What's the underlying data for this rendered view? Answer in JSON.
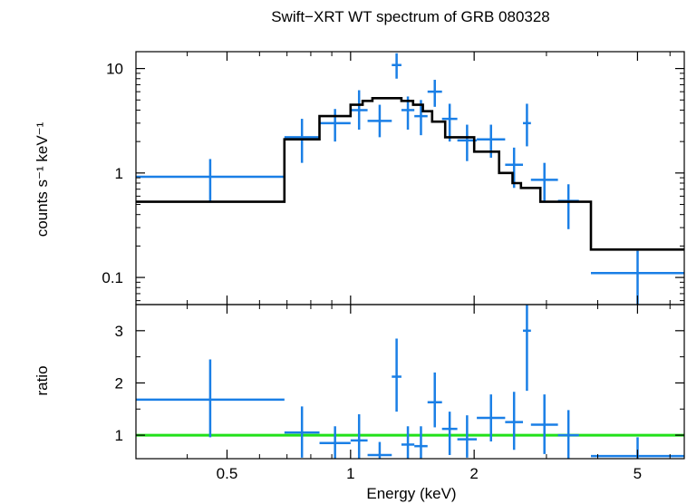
{
  "chart_data": {
    "type": "scatter",
    "title": "Swift−XRT WT spectrum of GRB 080328",
    "xlabel": "Energy (keV)",
    "x_scale": "log",
    "x_range": [
      0.3,
      6.5
    ],
    "x_tick_labels": [
      "0.5",
      "1",
      "2",
      "5"
    ],
    "colors": {
      "data": "#1a7fe6",
      "model": "#000000",
      "ratio_line": "#22e01a"
    },
    "panels": [
      {
        "id": "spectrum",
        "ylabel": "counts s⁻¹ keV⁻¹",
        "y_scale": "log",
        "y_range": [
          0.055,
          14.5
        ],
        "y_tick_labels": [
          "0.1",
          "1",
          "10"
        ],
        "series": [
          {
            "kind": "data_with_errors",
            "points": [
              {
                "x0": 0.3,
                "x1": 0.69,
                "y": 0.92,
                "ylo": 0.52,
                "yhi": 1.36
              },
              {
                "x0": 0.69,
                "x1": 0.84,
                "y": 2.2,
                "ylo": 1.25,
                "yhi": 3.3
              },
              {
                "x0": 0.84,
                "x1": 1.0,
                "y": 3.0,
                "ylo": 2.0,
                "yhi": 4.1
              },
              {
                "x0": 1.0,
                "x1": 1.1,
                "y": 4.0,
                "ylo": 2.6,
                "yhi": 6.2
              },
              {
                "x0": 1.1,
                "x1": 1.26,
                "y": 3.15,
                "ylo": 2.2,
                "yhi": 4.5
              },
              {
                "x0": 1.26,
                "x1": 1.33,
                "y": 10.8,
                "ylo": 8.0,
                "yhi": 14.0
              },
              {
                "x0": 1.33,
                "x1": 1.43,
                "y": 4.0,
                "ylo": 2.6,
                "yhi": 5.4
              },
              {
                "x0": 1.43,
                "x1": 1.54,
                "y": 3.5,
                "ylo": 2.3,
                "yhi": 5.0
              },
              {
                "x0": 1.54,
                "x1": 1.67,
                "y": 6.0,
                "ylo": 4.3,
                "yhi": 7.8
              },
              {
                "x0": 1.67,
                "x1": 1.82,
                "y": 3.3,
                "ylo": 2.0,
                "yhi": 4.6
              },
              {
                "x0": 1.82,
                "x1": 2.03,
                "y": 2.05,
                "ylo": 1.3,
                "yhi": 2.9
              },
              {
                "x0": 2.03,
                "x1": 2.38,
                "y": 2.1,
                "ylo": 1.4,
                "yhi": 2.9
              },
              {
                "x0": 2.38,
                "x1": 2.63,
                "y": 1.2,
                "ylo": 0.72,
                "yhi": 1.75
              },
              {
                "x0": 2.63,
                "x1": 2.75,
                "y": 3.0,
                "ylo": 1.8,
                "yhi": 4.6
              },
              {
                "x0": 2.75,
                "x1": 3.2,
                "y": 0.86,
                "ylo": 0.52,
                "yhi": 1.25
              },
              {
                "x0": 3.2,
                "x1": 3.6,
                "y": 0.54,
                "ylo": 0.29,
                "yhi": 0.78
              },
              {
                "x0": 3.85,
                "x1": 6.5,
                "y": 0.11,
                "ylo": 0.055,
                "yhi": 0.18
              }
            ]
          },
          {
            "kind": "model_step",
            "edges": [
              0.3,
              0.69,
              0.84,
              1.0,
              1.07,
              1.13,
              1.33,
              1.42,
              1.5,
              1.58,
              1.7,
              1.86,
              2.0,
              2.3,
              2.48,
              2.6,
              2.9,
              3.2,
              3.85,
              6.5
            ],
            "values": [
              0.53,
              2.1,
              3.5,
              4.5,
              4.9,
              5.2,
              4.9,
              4.5,
              3.9,
              3.1,
              2.2,
              2.2,
              1.6,
              1.0,
              0.8,
              0.72,
              0.53,
              0.53,
              0.185
            ]
          }
        ]
      },
      {
        "id": "ratio",
        "ylabel": "ratio",
        "y_scale": "linear",
        "y_range": [
          0.55,
          3.5
        ],
        "y_tick_labels": [
          "1",
          "2",
          "3"
        ],
        "reference_line": 1.0,
        "series": [
          {
            "kind": "data_with_errors",
            "points": [
              {
                "x0": 0.3,
                "x1": 0.69,
                "y": 1.68,
                "ylo": 0.96,
                "yhi": 2.45
              },
              {
                "x0": 0.69,
                "x1": 0.84,
                "y": 1.05,
                "ylo": 0.57,
                "yhi": 1.55
              },
              {
                "x0": 0.84,
                "x1": 1.0,
                "y": 0.85,
                "ylo": 0.55,
                "yhi": 1.17
              },
              {
                "x0": 1.0,
                "x1": 1.1,
                "y": 0.9,
                "ylo": 0.55,
                "yhi": 1.4
              },
              {
                "x0": 1.1,
                "x1": 1.26,
                "y": 0.62,
                "ylo": 0.55,
                "yhi": 0.87
              },
              {
                "x0": 1.26,
                "x1": 1.33,
                "y": 2.12,
                "ylo": 1.45,
                "yhi": 2.85
              },
              {
                "x0": 1.33,
                "x1": 1.43,
                "y": 0.82,
                "ylo": 0.55,
                "yhi": 1.17
              },
              {
                "x0": 1.43,
                "x1": 1.54,
                "y": 0.79,
                "ylo": 0.55,
                "yhi": 1.17
              },
              {
                "x0": 1.54,
                "x1": 1.67,
                "y": 1.63,
                "ylo": 1.15,
                "yhi": 2.2
              },
              {
                "x0": 1.67,
                "x1": 1.82,
                "y": 1.12,
                "ylo": 0.62,
                "yhi": 1.45
              },
              {
                "x0": 1.82,
                "x1": 2.03,
                "y": 0.92,
                "ylo": 0.57,
                "yhi": 1.38
              },
              {
                "x0": 2.03,
                "x1": 2.38,
                "y": 1.33,
                "ylo": 0.88,
                "yhi": 1.78
              },
              {
                "x0": 2.38,
                "x1": 2.63,
                "y": 1.25,
                "ylo": 0.72,
                "yhi": 1.83
              },
              {
                "x0": 2.63,
                "x1": 2.75,
                "y": 3.0,
                "ylo": 1.85,
                "yhi": 3.5
              },
              {
                "x0": 2.75,
                "x1": 3.2,
                "y": 1.2,
                "ylo": 0.64,
                "yhi": 1.78
              },
              {
                "x0": 3.2,
                "x1": 3.6,
                "y": 1.0,
                "ylo": 0.55,
                "yhi": 1.48
              },
              {
                "x0": 3.85,
                "x1": 6.5,
                "y": 0.6,
                "ylo": 0.55,
                "yhi": 0.96
              }
            ]
          }
        ]
      }
    ]
  }
}
